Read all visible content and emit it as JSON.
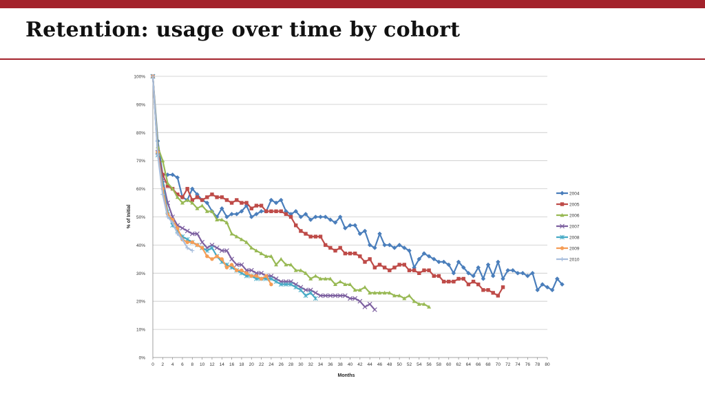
{
  "slide": {
    "title": "Retention: usage over time by cohort",
    "accent_color": "#a3222b"
  },
  "chart_data": {
    "type": "line",
    "title": "",
    "xlabel": "Months",
    "ylabel": "% of Initial",
    "xlim": [
      0,
      80
    ],
    "ylim": [
      0,
      100
    ],
    "x_ticks": [
      0,
      2,
      4,
      6,
      8,
      10,
      12,
      14,
      16,
      18,
      20,
      22,
      24,
      26,
      28,
      30,
      32,
      34,
      36,
      38,
      40,
      42,
      44,
      46,
      48,
      50,
      52,
      54,
      56,
      58,
      60,
      62,
      64,
      66,
      68,
      70,
      72,
      74,
      76,
      78,
      80
    ],
    "y_ticks": [
      "0%",
      "10%",
      "20%",
      "30%",
      "40%",
      "50%",
      "60%",
      "70%",
      "80%",
      "90%",
      "100%"
    ],
    "grid": true,
    "legend_position": "right",
    "series": [
      {
        "name": "2004",
        "color": "#4a7ebb",
        "marker": "diamond",
        "values": [
          100,
          77,
          65,
          65,
          65,
          64,
          57,
          56,
          60,
          58,
          56,
          55,
          52,
          50,
          53,
          50,
          51,
          51,
          52,
          54,
          50,
          51,
          52,
          52,
          56,
          55,
          56,
          52,
          51,
          52,
          50,
          51,
          49,
          50,
          50,
          50,
          49,
          48,
          50,
          46,
          47,
          47,
          44,
          45,
          40,
          39,
          44,
          40,
          40,
          39,
          40,
          39,
          38,
          32,
          35,
          37,
          36,
          35,
          34,
          34,
          33,
          30,
          34,
          32,
          30,
          29,
          32,
          28,
          33,
          29,
          34,
          28,
          31,
          31,
          30,
          30,
          29,
          30,
          24,
          26,
          25,
          24,
          28,
          26
        ]
      },
      {
        "name": "2005",
        "color": "#be4b48",
        "marker": "square",
        "values": [
          100,
          73,
          65,
          61,
          60,
          58,
          57,
          60,
          56,
          57,
          56,
          57,
          58,
          57,
          57,
          56,
          55,
          56,
          55,
          55,
          53,
          54,
          54,
          52,
          52,
          52,
          52,
          51,
          50,
          47,
          45,
          44,
          43,
          43,
          43,
          40,
          39,
          38,
          39,
          37,
          37,
          37,
          36,
          34,
          35,
          32,
          33,
          32,
          31,
          32,
          33,
          33,
          31,
          31,
          30,
          31,
          31,
          29,
          29,
          27,
          27,
          27,
          28,
          28,
          26,
          27,
          26,
          24,
          24,
          23,
          22,
          25
        ]
      },
      {
        "name": "2006",
        "color": "#98b954",
        "marker": "triangle",
        "values": [
          100,
          75,
          70,
          62,
          60,
          57,
          55,
          56,
          55,
          53,
          54,
          52,
          52,
          49,
          49,
          48,
          44,
          43,
          42,
          41,
          39,
          38,
          37,
          36,
          36,
          33,
          35,
          33,
          33,
          31,
          31,
          30,
          28,
          29,
          28,
          28,
          28,
          26,
          27,
          26,
          26,
          24,
          24,
          25,
          23,
          23,
          23,
          23,
          23,
          22,
          22,
          21,
          22,
          20,
          19,
          19,
          18
        ]
      },
      {
        "name": "2007",
        "color": "#7d60a0",
        "marker": "x",
        "values": [
          100,
          73,
          63,
          55,
          50,
          47,
          46,
          45,
          44,
          44,
          41,
          39,
          40,
          39,
          38,
          38,
          35,
          33,
          33,
          31,
          31,
          30,
          30,
          29,
          29,
          28,
          27,
          27,
          27,
          26,
          25,
          24,
          24,
          23,
          22,
          22,
          22,
          22,
          22,
          22,
          21,
          21,
          20,
          18,
          19,
          17
        ]
      },
      {
        "name": "2008",
        "color": "#46aac5",
        "marker": "star",
        "values": [
          100,
          72,
          62,
          52,
          47,
          45,
          43,
          42,
          41,
          40,
          39,
          38,
          39,
          36,
          34,
          33,
          32,
          31,
          30,
          29,
          29,
          28,
          28,
          28,
          28,
          27,
          26,
          26,
          26,
          25,
          24,
          22,
          23,
          21
        ]
      },
      {
        "name": "2009",
        "color": "#f59d56",
        "marker": "circle",
        "values": [
          100,
          73,
          60,
          51,
          49,
          46,
          42,
          41,
          41,
          40,
          39,
          36,
          35,
          36,
          35,
          32,
          33,
          31,
          31,
          30,
          29,
          29,
          28,
          29,
          26
        ]
      },
      {
        "name": "2010",
        "color": "#a8bedd",
        "marker": "plus",
        "values": [
          100,
          72,
          58,
          50,
          48,
          44,
          42,
          39,
          38
        ]
      }
    ]
  }
}
